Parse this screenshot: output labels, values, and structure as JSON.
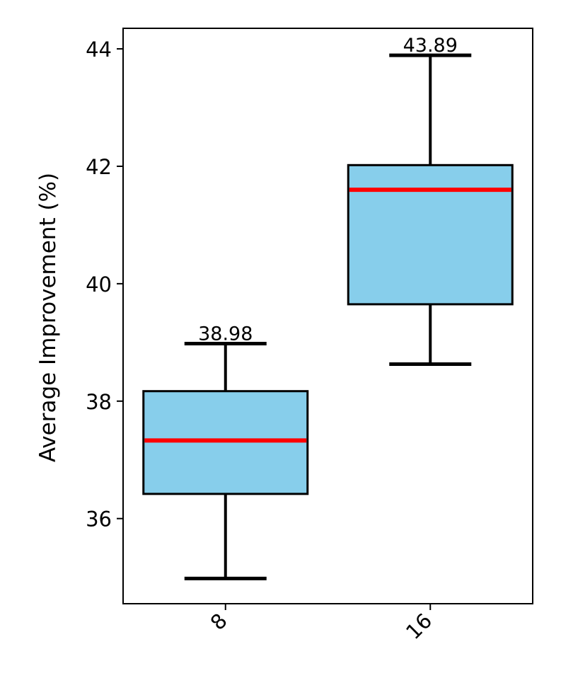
{
  "chart_data": {
    "type": "box",
    "title": "",
    "xlabel": "",
    "ylabel": "Average Improvement (%)",
    "ylim": [
      34.55,
      44.35
    ],
    "yticks": [
      36,
      38,
      40,
      42,
      44
    ],
    "grid": false,
    "legend": "none",
    "categories": [
      "8",
      "16"
    ],
    "boxes": [
      {
        "category": "8",
        "whisker_low": 34.98,
        "q1": 36.42,
        "median": 37.33,
        "q3": 38.17,
        "whisker_high": 38.98,
        "max_label": "38.98"
      },
      {
        "category": "16",
        "whisker_low": 38.63,
        "q1": 39.65,
        "median": 41.6,
        "q3": 42.02,
        "whisker_high": 43.89,
        "max_label": "43.89"
      }
    ],
    "colors": {
      "box_fill": "#87CEEB",
      "box_edge": "#000000",
      "median": "#FF0000",
      "whisker": "#000000"
    }
  }
}
